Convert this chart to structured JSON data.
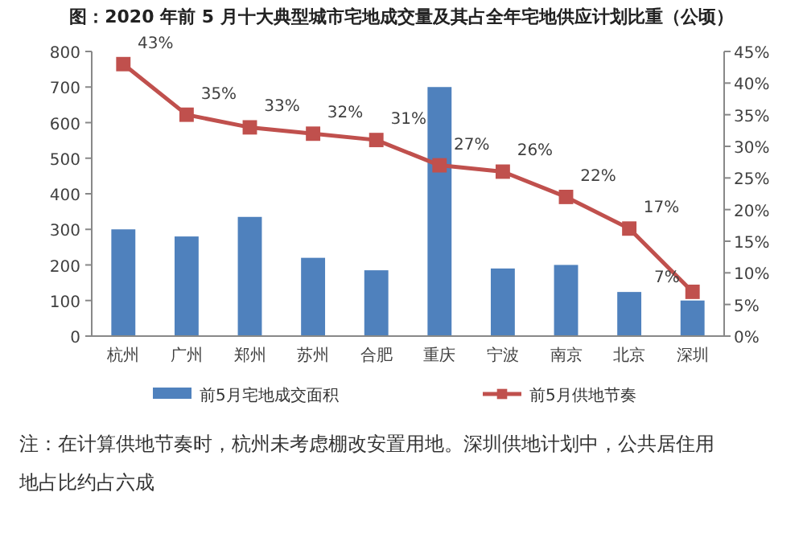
{
  "chart_data": {
    "type": "bar",
    "title": "图：2020 年前 5 月十大典型城市宅地成交量及其占全年宅地供应计划比重（公顷）",
    "categories": [
      "杭州",
      "广州",
      "郑州",
      "苏州",
      "合肥",
      "重庆",
      "宁波",
      "南京",
      "北京",
      "深圳"
    ],
    "series": [
      {
        "name": "前5月宅地成交面积",
        "color": "#4f81bd",
        "values": [
          300,
          280,
          335,
          220,
          185,
          700,
          190,
          200,
          124,
          100
        ]
      },
      {
        "name": "前5月供地节奏",
        "color": "#c0504d",
        "type": "line",
        "axis": "y2",
        "values": [
          43,
          35,
          33,
          32,
          31,
          27,
          26,
          22,
          17,
          7
        ],
        "value_labels": [
          "43%",
          "35%",
          "33%",
          "32%",
          "31%",
          "27%",
          "26%",
          "22%",
          "17%",
          "7%"
        ]
      }
    ],
    "ylim": [
      0,
      800
    ],
    "yticks": [
      0,
      100,
      200,
      300,
      400,
      500,
      600,
      700,
      800
    ],
    "y2lim": [
      0,
      45
    ],
    "y2ticks": [
      {
        "value": 0,
        "label": "0%"
      },
      {
        "value": 5,
        "label": "5%"
      },
      {
        "value": 10,
        "label": "10%"
      },
      {
        "value": 15,
        "label": "15%"
      },
      {
        "value": 20,
        "label": "20%"
      },
      {
        "value": 25,
        "label": "25%"
      },
      {
        "value": 30,
        "label": "30%"
      },
      {
        "value": 35,
        "label": "35%"
      },
      {
        "value": 40,
        "label": "40%"
      },
      {
        "value": 45,
        "label": "45%"
      }
    ],
    "marker": "square",
    "legend": "bottom",
    "grid": false,
    "annotations": [
      "注：在计算供地节奏时，杭州未考虑棚改安置用地。深圳供地计划中，公共居住用地占比约占六成"
    ]
  }
}
